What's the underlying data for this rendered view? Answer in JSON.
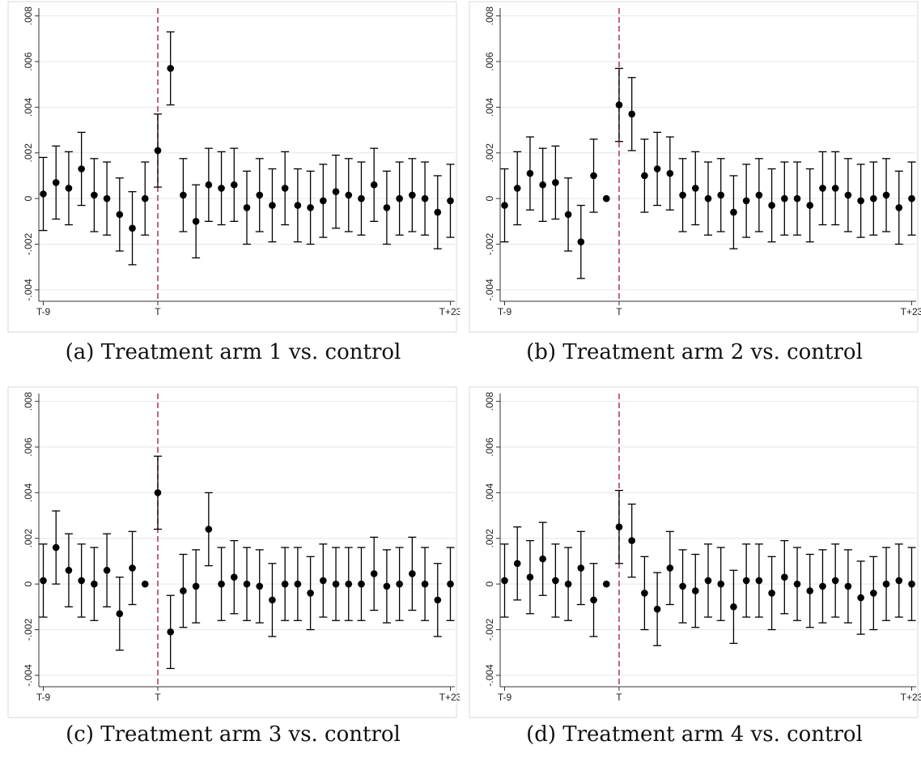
{
  "chart_data": [
    {
      "type": "scatter",
      "caption": "(a) Treatment arm 1 vs. control",
      "x": [
        -9,
        -8,
        -7,
        -6,
        -5,
        -4,
        -3,
        -2,
        -1,
        0,
        1,
        2,
        3,
        4,
        5,
        6,
        7,
        8,
        9,
        10,
        11,
        12,
        13,
        14,
        15,
        16,
        17,
        18,
        19,
        20,
        21,
        22,
        23
      ],
      "y": [
        0.0002,
        0.0007,
        0.00045,
        0.0013,
        0.00015,
        0.0,
        -0.0007,
        -0.0013,
        0.0,
        0.0021,
        0.0057,
        0.00015,
        -0.001,
        0.0006,
        0.00045,
        0.0006,
        -0.0004,
        0.00015,
        -0.0003,
        0.00045,
        -0.0003,
        -0.0004,
        -0.0001,
        0.0003,
        0.00015,
        0.0,
        0.0006,
        -0.0004,
        0.0,
        0.00015,
        0.0,
        -0.0006,
        -0.0001
      ],
      "ci_half_width": 0.0016,
      "reference_index": -1,
      "event_line_x": 0,
      "ylim": [
        -0.0045,
        0.0082
      ],
      "yticks": [
        -0.004,
        -0.002,
        0,
        0.002,
        0.004,
        0.006,
        0.008
      ],
      "ytick_labels": [
        "-.004",
        "-.002",
        "0",
        ".002",
        ".004",
        ".006",
        ".008"
      ],
      "xticks": [
        -9,
        0,
        23
      ],
      "xtick_labels": [
        "T-9",
        "T",
        "T+23"
      ]
    },
    {
      "type": "scatter",
      "caption": "(b) Treatment arm 2 vs. control",
      "x": [
        -9,
        -8,
        -7,
        -6,
        -5,
        -4,
        -3,
        -2,
        -1,
        0,
        1,
        2,
        3,
        4,
        5,
        6,
        7,
        8,
        9,
        10,
        11,
        12,
        13,
        14,
        15,
        16,
        17,
        18,
        19,
        20,
        21,
        22,
        23
      ],
      "y": [
        -0.0003,
        0.00045,
        0.0011,
        0.0006,
        0.0007,
        -0.0007,
        -0.0019,
        0.001,
        0.0,
        0.0041,
        0.0037,
        0.001,
        0.0013,
        0.0011,
        0.00015,
        0.00045,
        0.0,
        0.00015,
        -0.0006,
        -0.0001,
        0.00015,
        -0.0003,
        0.0,
        0.0,
        -0.0003,
        0.00045,
        0.00045,
        0.00015,
        -0.0001,
        0.0,
        0.00015,
        -0.0004,
        0.0
      ],
      "ci_half_width": 0.0016,
      "reference_index": 8,
      "event_line_x": 0,
      "ylim": [
        -0.0045,
        0.0082
      ],
      "yticks": [
        -0.004,
        -0.002,
        0,
        0.002,
        0.004,
        0.006,
        0.008
      ],
      "ytick_labels": [
        "-.004",
        "-.002",
        "0",
        ".002",
        ".004",
        ".006",
        ".008"
      ],
      "xticks": [
        -9,
        0,
        23
      ],
      "xtick_labels": [
        "T-9",
        "T",
        "T+23"
      ]
    },
    {
      "type": "scatter",
      "caption": "(c) Treatment arm 3 vs. control",
      "x": [
        -9,
        -8,
        -7,
        -6,
        -5,
        -4,
        -3,
        -2,
        -1,
        0,
        1,
        2,
        3,
        4,
        5,
        6,
        7,
        8,
        9,
        10,
        11,
        12,
        13,
        14,
        15,
        16,
        17,
        18,
        19,
        20,
        21,
        22,
        23
      ],
      "y": [
        0.00015,
        0.0016,
        0.0006,
        0.00015,
        0.0,
        0.0006,
        -0.0013,
        0.0007,
        0.0,
        0.004,
        -0.0021,
        -0.0003,
        -0.0001,
        0.0024,
        0.0,
        0.0003,
        0.0,
        -0.0001,
        -0.0007,
        0.0,
        0.0,
        -0.0004,
        0.00015,
        0.0,
        0.0,
        0.0,
        0.00045,
        -0.0001,
        0.0,
        0.00045,
        0.0,
        -0.0007,
        0.0
      ],
      "ci_half_width": 0.0016,
      "reference_index": 8,
      "event_line_x": 0,
      "ylim": [
        -0.0045,
        0.0082
      ],
      "yticks": [
        -0.004,
        -0.002,
        0,
        0.002,
        0.004,
        0.006,
        0.008
      ],
      "ytick_labels": [
        "-.004",
        "-.002",
        "0",
        ".002",
        ".004",
        ".006",
        ".008"
      ],
      "xticks": [
        -9,
        0,
        23
      ],
      "xtick_labels": [
        "T-9",
        "T",
        "T+23"
      ]
    },
    {
      "type": "scatter",
      "caption": "(d) Treatment arm 4 vs. control",
      "x": [
        -9,
        -8,
        -7,
        -6,
        -5,
        -4,
        -3,
        -2,
        -1,
        0,
        1,
        2,
        3,
        4,
        5,
        6,
        7,
        8,
        9,
        10,
        11,
        12,
        13,
        14,
        15,
        16,
        17,
        18,
        19,
        20,
        21,
        22,
        23
      ],
      "y": [
        0.00015,
        0.0009,
        0.0003,
        0.0011,
        0.00015,
        0.0,
        0.0007,
        -0.0007,
        0.0,
        0.0025,
        0.0019,
        -0.0004,
        -0.0011,
        0.0007,
        -0.0001,
        -0.0003,
        0.00015,
        0.0,
        -0.001,
        0.00015,
        0.00015,
        -0.0004,
        0.0003,
        0.0,
        -0.0003,
        -0.0001,
        0.00015,
        -0.0001,
        -0.0006,
        -0.0004,
        0.0,
        0.00015,
        0.0
      ],
      "ci_half_width": 0.0016,
      "reference_index": 8,
      "event_line_x": 0,
      "ylim": [
        -0.0045,
        0.0082
      ],
      "yticks": [
        -0.004,
        -0.002,
        0,
        0.002,
        0.004,
        0.006,
        0.008
      ],
      "ytick_labels": [
        "-.004",
        "-.002",
        "0",
        ".002",
        ".004",
        ".006",
        ".008"
      ],
      "xticks": [
        -9,
        0,
        23
      ],
      "xtick_labels": [
        "T-9",
        "T",
        "T+23"
      ]
    }
  ],
  "colors": {
    "marker": "#000000",
    "event_line": "#b03060",
    "gridline": "#e6e6e6",
    "frame": "#d9d9d9"
  }
}
